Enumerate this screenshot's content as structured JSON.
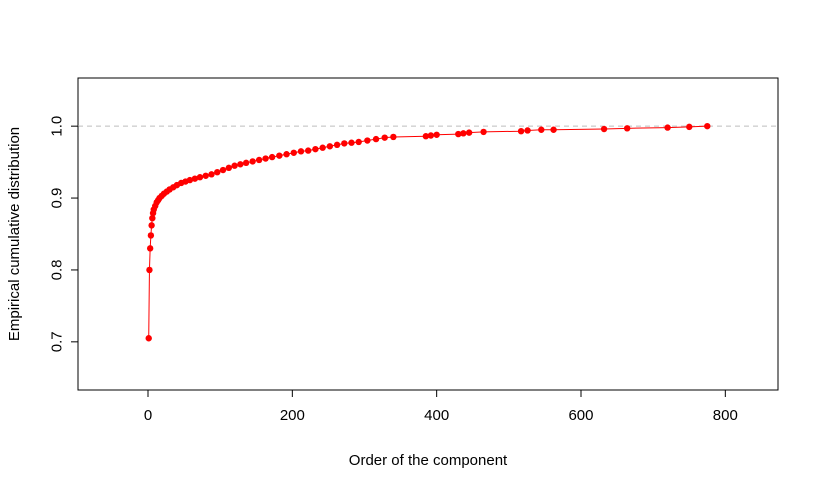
{
  "chart_data": {
    "type": "scatter",
    "xlabel": "Order of the component",
    "ylabel": "Empirical cumulative distribution",
    "xlim": [
      -97,
      873
    ],
    "ylim": [
      0.633,
      1.067
    ],
    "x_ticks": [
      0,
      200,
      400,
      600,
      800
    ],
    "x_tick_labels": [
      "0",
      "200",
      "400",
      "600",
      "800"
    ],
    "y_ticks": [
      0.7,
      0.8,
      0.9,
      1.0
    ],
    "y_tick_labels": [
      "0.7",
      "0.8",
      "0.9",
      "1.0"
    ],
    "reference_line": {
      "y": 1.0,
      "style": "dashed",
      "color": "#bebebe"
    },
    "grid": false,
    "series": [
      {
        "color": "#ff0000",
        "line": true,
        "points": [
          [
            1,
            0.705
          ],
          [
            2,
            0.8
          ],
          [
            3,
            0.83
          ],
          [
            4,
            0.848
          ],
          [
            5,
            0.862
          ],
          [
            6,
            0.872
          ],
          [
            7,
            0.879
          ],
          [
            8,
            0.884
          ],
          [
            10,
            0.889
          ],
          [
            12,
            0.894
          ],
          [
            14,
            0.897
          ],
          [
            16,
            0.9
          ],
          [
            19,
            0.903
          ],
          [
            22,
            0.906
          ],
          [
            26,
            0.909
          ],
          [
            30,
            0.912
          ],
          [
            35,
            0.915
          ],
          [
            40,
            0.918
          ],
          [
            46,
            0.921
          ],
          [
            52,
            0.923
          ],
          [
            58,
            0.925
          ],
          [
            65,
            0.927
          ],
          [
            72,
            0.929
          ],
          [
            80,
            0.931
          ],
          [
            88,
            0.933
          ],
          [
            96,
            0.936
          ],
          [
            104,
            0.939
          ],
          [
            112,
            0.942
          ],
          [
            120,
            0.945
          ],
          [
            128,
            0.947
          ],
          [
            136,
            0.949
          ],
          [
            145,
            0.951
          ],
          [
            154,
            0.953
          ],
          [
            163,
            0.955
          ],
          [
            172,
            0.957
          ],
          [
            182,
            0.959
          ],
          [
            192,
            0.961
          ],
          [
            202,
            0.963
          ],
          [
            212,
            0.965
          ],
          [
            222,
            0.966
          ],
          [
            232,
            0.968
          ],
          [
            242,
            0.97
          ],
          [
            252,
            0.972
          ],
          [
            262,
            0.974
          ],
          [
            272,
            0.976
          ],
          [
            282,
            0.977
          ],
          [
            292,
            0.978
          ],
          [
            304,
            0.98
          ],
          [
            316,
            0.982
          ],
          [
            328,
            0.984
          ],
          [
            340,
            0.985
          ],
          [
            385,
            0.986
          ],
          [
            392,
            0.987
          ],
          [
            400,
            0.988
          ],
          [
            430,
            0.989
          ],
          [
            437,
            0.99
          ],
          [
            445,
            0.991
          ],
          [
            465,
            0.992
          ],
          [
            517,
            0.993
          ],
          [
            526,
            0.994
          ],
          [
            545,
            0.995
          ],
          [
            562,
            0.995
          ],
          [
            632,
            0.996
          ],
          [
            664,
            0.997
          ],
          [
            720,
            0.998
          ],
          [
            750,
            0.999
          ],
          [
            775,
            1.0
          ]
        ]
      }
    ]
  }
}
